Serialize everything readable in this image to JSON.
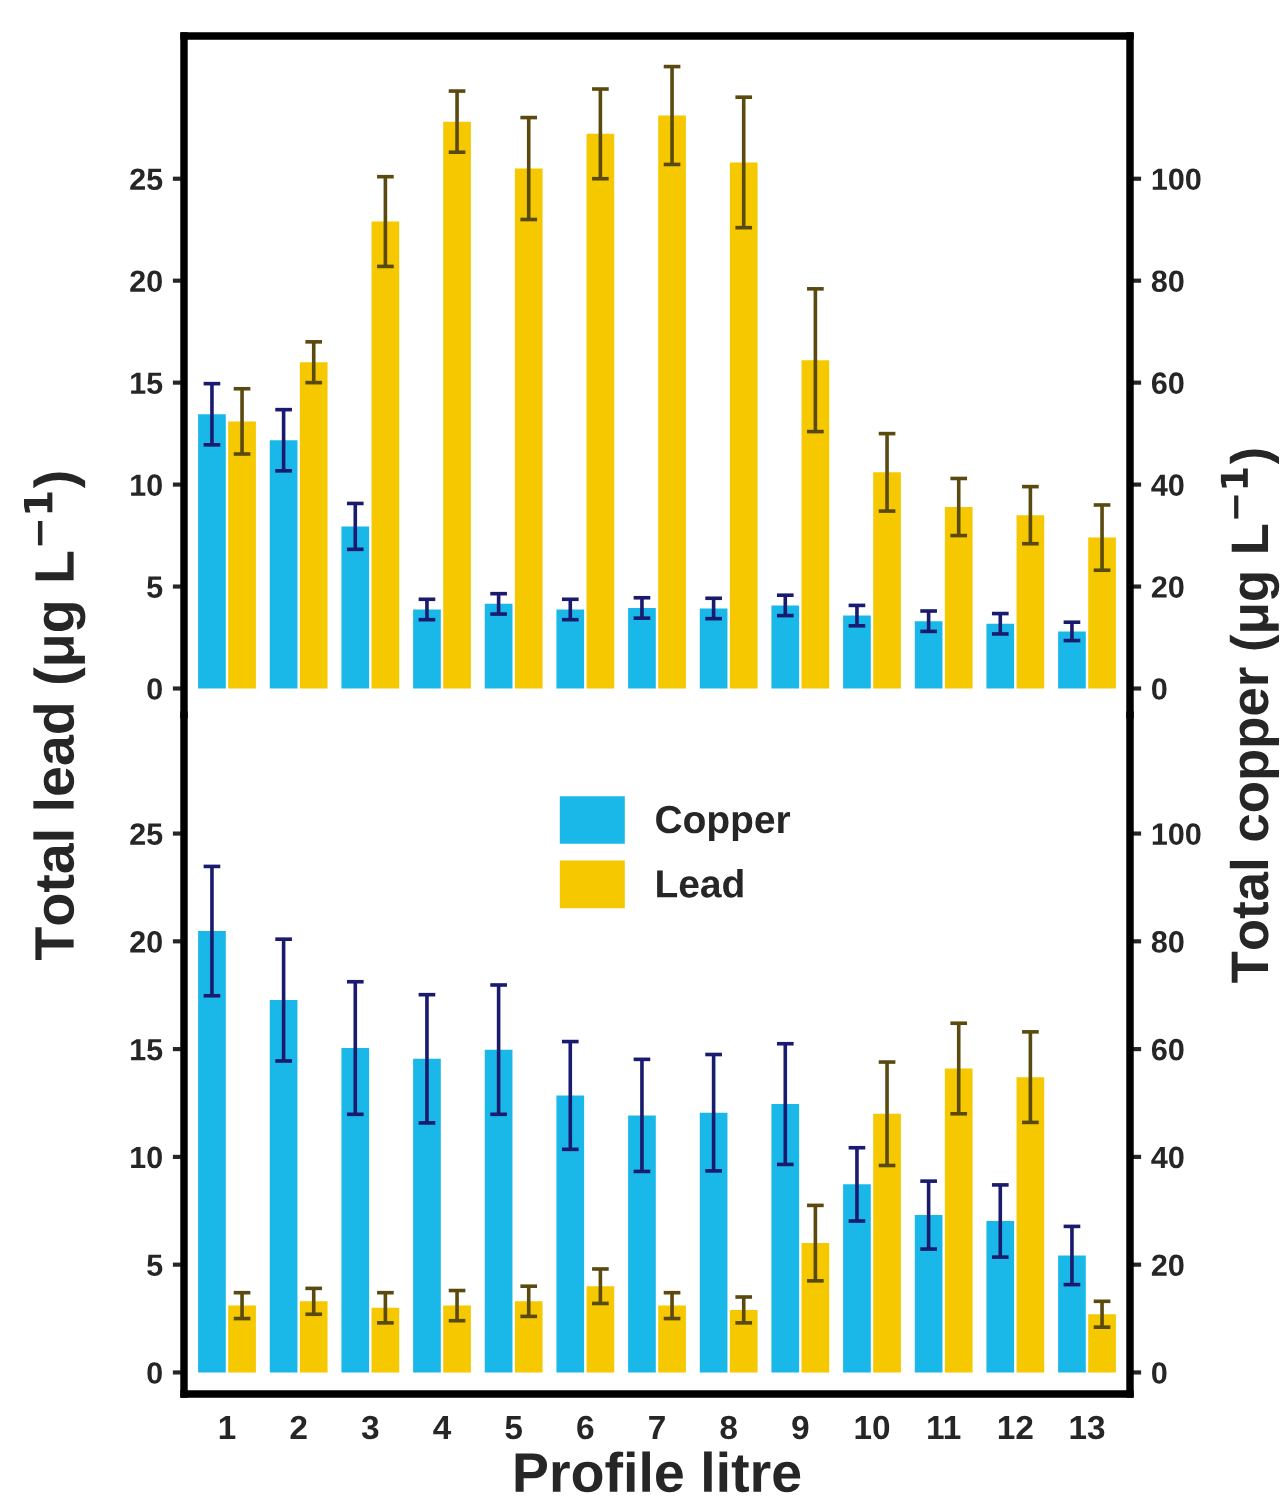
{
  "chart_data": [
    {
      "type": "bar",
      "categories": [
        "1",
        "2",
        "3",
        "4",
        "5",
        "6",
        "7",
        "8",
        "9",
        "10",
        "11",
        "12",
        "13"
      ],
      "tick_labels": "y",
      "ylim": [
        -1.3,
        32
      ],
      "yticks": [
        0,
        5,
        10,
        15,
        20,
        25
      ],
      "y2lim": [
        -5.2,
        128
      ],
      "y2ticks": [
        0,
        20,
        40,
        60,
        80,
        100
      ],
      "grid": false,
      "legend": false,
      "series": [
        {
          "color": "#1ab8e8",
          "axis": "y2",
          "values": [
            53.8,
            48.7,
            31.8,
            15.5,
            16.6,
            15.5,
            15.8,
            15.7,
            16.3,
            14.3,
            13.2,
            12.7,
            11.2
          ],
          "errors": [
            6,
            6,
            4.5,
            2,
            2,
            2,
            2,
            2,
            2,
            2,
            2,
            2,
            1.8
          ]
        },
        {
          "color": "#f5c800",
          "values": [
            13.1,
            16.0,
            22.9,
            27.8,
            25.5,
            27.2,
            28.1,
            25.8,
            16.1,
            10.6,
            8.9,
            8.5,
            7.4
          ],
          "errors": [
            1.6,
            1.0,
            2.2,
            1.5,
            2.5,
            2.2,
            2.4,
            3.2,
            3.5,
            1.9,
            1.4,
            1.4,
            1.6
          ]
        }
      ]
    },
    {
      "type": "bar",
      "categories": [
        "1",
        "2",
        "3",
        "4",
        "5",
        "6",
        "7",
        "8",
        "9",
        "10",
        "11",
        "12",
        "13"
      ],
      "xlabel": "Profile litre",
      "ylabel": "Total lead (μg L$^{−1}$)",
      "y2label": "Total copper (μg L$^{−1}$)",
      "ylim": [
        -1,
        30.5
      ],
      "yticks": [
        0,
        5,
        10,
        15,
        20,
        25
      ],
      "y2lim": [
        -4,
        122
      ],
      "y2ticks": [
        0,
        20,
        40,
        60,
        80,
        100
      ],
      "grid": false,
      "legend": "top",
      "series": [
        {
          "name": "Copper",
          "color": "#1ab8e8",
          "axis": "y2",
          "values": [
            81.9,
            69.1,
            60.2,
            58.2,
            59.9,
            51.4,
            47.7,
            48.2,
            49.8,
            34.9,
            29.2,
            28.1,
            21.7
          ],
          "errors": [
            12,
            11.3,
            12.3,
            11.9,
            12,
            10,
            10.4,
            10.8,
            11.2,
            6.8,
            6.3,
            6.7,
            5.4
          ]
        },
        {
          "name": "Lead",
          "color": "#f5c800",
          "values": [
            3.1,
            3.3,
            3.0,
            3.1,
            3.3,
            4.0,
            3.1,
            2.9,
            6.0,
            12.0,
            14.1,
            13.7,
            2.7
          ],
          "errors": [
            0.6,
            0.6,
            0.7,
            0.7,
            0.7,
            0.8,
            0.6,
            0.6,
            1.75,
            2.4,
            2.1,
            2.1,
            0.6
          ]
        }
      ]
    }
  ]
}
